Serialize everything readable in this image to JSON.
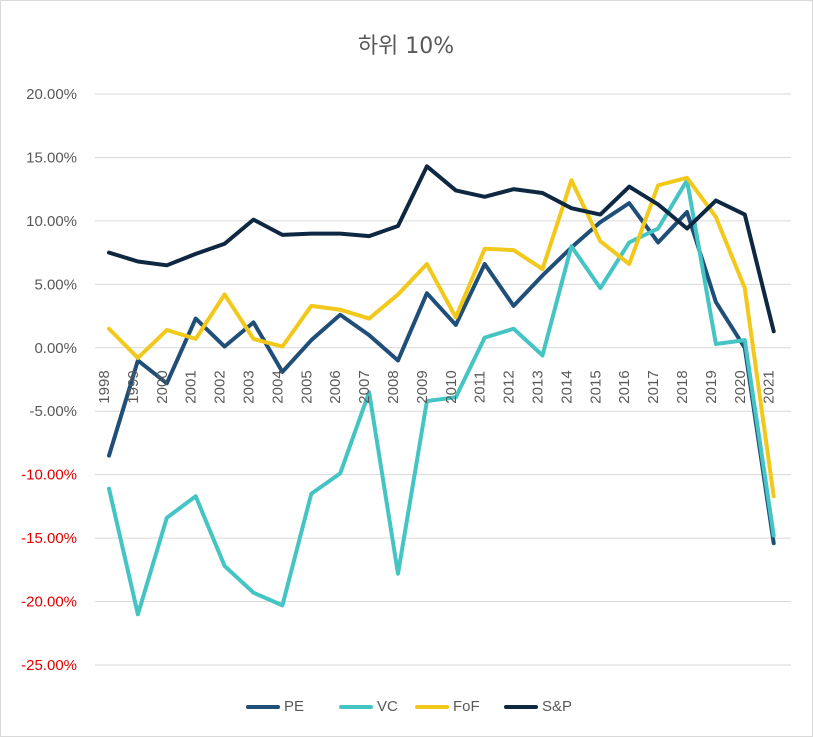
{
  "chart_data": {
    "type": "line",
    "title": "하위 10%",
    "xlabel": "",
    "ylabel": "",
    "categories": [
      "1998",
      "1999",
      "2000",
      "2001",
      "2002",
      "2003",
      "2004",
      "2005",
      "2006",
      "2007",
      "2008",
      "2009",
      "2010",
      "2011",
      "2012",
      "2013",
      "2014",
      "2015",
      "2016",
      "2017",
      "2018",
      "2019",
      "2020",
      "2021"
    ],
    "y_ticks": [
      "20.00%",
      "15.00%",
      "10.00%",
      "5.00%",
      "0.00%",
      "-5.00%",
      "-10.00%",
      "-15.00%",
      "-20.00%",
      "-25.00%"
    ],
    "ylim": [
      -25,
      20
    ],
    "grid": true,
    "legend_position": "bottom",
    "series": [
      {
        "name": "PE",
        "color": "#1F4E79",
        "values": [
          -8.5,
          -1.0,
          -2.8,
          2.3,
          0.1,
          2.0,
          -1.9,
          0.6,
          2.6,
          1.0,
          -1.0,
          4.3,
          1.8,
          6.6,
          3.3,
          5.7,
          7.9,
          9.9,
          11.4,
          8.3,
          10.7,
          3.6,
          0.0,
          -15.4
        ]
      },
      {
        "name": "VC",
        "color": "#45C4C4",
        "values": [
          -11.1,
          -21.0,
          -13.4,
          -11.7,
          -17.2,
          -19.3,
          -20.3,
          -11.5,
          -9.9,
          -3.5,
          -17.8,
          -4.2,
          -3.9,
          0.8,
          1.5,
          -0.6,
          8.0,
          4.7,
          8.3,
          9.4,
          13.2,
          0.3,
          0.6,
          -14.8
        ]
      },
      {
        "name": "FoF",
        "color": "#F2C81A",
        "values": [
          1.5,
          -0.8,
          1.4,
          0.7,
          4.2,
          0.7,
          0.1,
          3.3,
          3.0,
          2.3,
          4.2,
          6.6,
          2.4,
          7.8,
          7.7,
          6.2,
          13.2,
          8.4,
          6.6,
          12.8,
          13.4,
          10.3,
          4.7,
          -11.7
        ]
      },
      {
        "name": "S&P",
        "color": "#0E2841",
        "values": [
          7.5,
          6.8,
          6.5,
          7.4,
          8.2,
          10.1,
          8.9,
          9.0,
          9.0,
          8.8,
          9.6,
          14.3,
          12.4,
          11.9,
          12.5,
          12.2,
          11.0,
          10.5,
          12.7,
          11.3,
          9.4,
          11.6,
          10.5,
          1.3
        ]
      }
    ]
  }
}
